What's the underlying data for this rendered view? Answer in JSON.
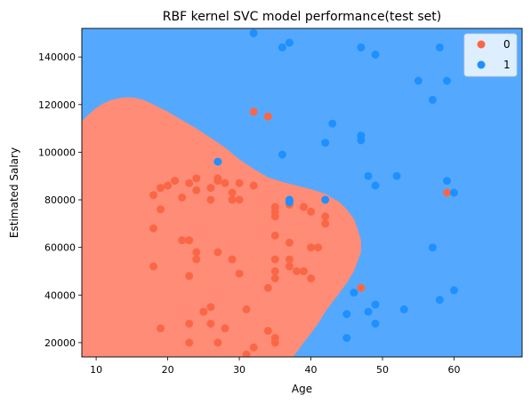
{
  "chart_data": {
    "type": "scatter",
    "title": "RBF kernel SVC model performance(test set)",
    "xlabel": "Age",
    "ylabel": "Estimated Salary",
    "xlim": [
      8,
      69.5
    ],
    "ylim": [
      14000,
      152000
    ],
    "xticks": [
      10,
      20,
      30,
      40,
      50,
      60
    ],
    "yticks": [
      20000,
      40000,
      60000,
      80000,
      100000,
      120000,
      140000
    ],
    "legend_position": "top-right",
    "grid": false,
    "region_colors": {
      "0": "#ff8c76",
      "1": "#54a9ff"
    },
    "decision_boundary_class0": {
      "x": [
        8,
        9,
        10,
        11,
        12,
        13,
        14,
        15,
        16,
        17,
        18,
        20,
        22,
        24,
        26,
        28,
        30,
        32,
        34,
        36,
        38,
        40,
        42,
        44,
        45,
        46,
        46.5,
        47,
        47,
        46.5,
        46,
        45,
        44,
        43,
        42,
        41,
        40,
        39,
        38,
        37.5
      ],
      "y": [
        113000,
        116000,
        118500,
        120500,
        121800,
        122600,
        123000,
        123000,
        122500,
        121500,
        120000,
        117000,
        113500,
        110000,
        106000,
        102000,
        97000,
        93000,
        89500,
        87500,
        86000,
        84500,
        82500,
        79000,
        76000,
        72000,
        68000,
        63000,
        58000,
        54000,
        50000,
        45000,
        41000,
        37000,
        33000,
        28000,
        24000,
        20000,
        16000,
        14000
      ]
    },
    "series": [
      {
        "name": "0",
        "color": "#fa6746",
        "points": [
          [
            18,
            82000
          ],
          [
            19,
            85000
          ],
          [
            20,
            86000
          ],
          [
            21,
            88000
          ],
          [
            22,
            81000
          ],
          [
            23,
            87000
          ],
          [
            24,
            89000
          ],
          [
            24,
            84000
          ],
          [
            26,
            85000
          ],
          [
            27,
            89000
          ],
          [
            28,
            87000
          ],
          [
            27,
            88000
          ],
          [
            29,
            83000
          ],
          [
            29,
            80000
          ],
          [
            30,
            87000
          ],
          [
            30,
            80000
          ],
          [
            32,
            86000
          ],
          [
            26,
            80000
          ],
          [
            18,
            68000
          ],
          [
            22,
            63000
          ],
          [
            23,
            63000
          ],
          [
            24,
            58000
          ],
          [
            24,
            55000
          ],
          [
            27,
            58000
          ],
          [
            29,
            55000
          ],
          [
            30,
            49000
          ],
          [
            18,
            52000
          ],
          [
            23,
            48000
          ],
          [
            35,
            77000
          ],
          [
            35,
            75000
          ],
          [
            35,
            73000
          ],
          [
            37,
            78000
          ],
          [
            39,
            77000
          ],
          [
            40,
            75000
          ],
          [
            42,
            73000
          ],
          [
            42,
            70000
          ],
          [
            35,
            65000
          ],
          [
            37,
            62000
          ],
          [
            35,
            55000
          ],
          [
            37,
            55000
          ],
          [
            35,
            50000
          ],
          [
            35,
            47000
          ],
          [
            37,
            52000
          ],
          [
            38,
            50000
          ],
          [
            40,
            60000
          ],
          [
            41,
            60000
          ],
          [
            39,
            50000
          ],
          [
            40,
            47000
          ],
          [
            34,
            43000
          ],
          [
            26,
            35000
          ],
          [
            25,
            33000
          ],
          [
            26,
            28000
          ],
          [
            31,
            34000
          ],
          [
            23,
            28000
          ],
          [
            28,
            26000
          ],
          [
            19,
            26000
          ],
          [
            27,
            20000
          ],
          [
            23,
            20000
          ],
          [
            31,
            15000
          ],
          [
            32,
            18000
          ],
          [
            34,
            25000
          ],
          [
            35,
            20000
          ],
          [
            35,
            22000
          ],
          [
            32,
            117000
          ],
          [
            34,
            115000
          ],
          [
            47,
            43000
          ],
          [
            59,
            83000
          ],
          [
            19,
            76000
          ]
        ]
      },
      {
        "name": "1",
        "color": "#1e90ff",
        "points": [
          [
            32,
            150000
          ],
          [
            36,
            144000
          ],
          [
            37,
            146000
          ],
          [
            47,
            144000
          ],
          [
            49,
            141000
          ],
          [
            55,
            130000
          ],
          [
            58,
            144000
          ],
          [
            59,
            130000
          ],
          [
            57,
            122000
          ],
          [
            43,
            112000
          ],
          [
            42,
            104000
          ],
          [
            47,
            107000
          ],
          [
            47,
            105000
          ],
          [
            36,
            99000
          ],
          [
            27,
            96000
          ],
          [
            48,
            90000
          ],
          [
            52,
            90000
          ],
          [
            49,
            86000
          ],
          [
            59,
            88000
          ],
          [
            60,
            83000
          ],
          [
            37,
            80000
          ],
          [
            37,
            79000
          ],
          [
            42,
            80000
          ],
          [
            57,
            60000
          ],
          [
            60,
            42000
          ],
          [
            58,
            38000
          ],
          [
            46,
            41000
          ],
          [
            53,
            34000
          ],
          [
            49,
            36000
          ],
          [
            48,
            33000
          ],
          [
            45,
            32000
          ],
          [
            49,
            28000
          ],
          [
            45,
            22000
          ]
        ]
      }
    ]
  }
}
